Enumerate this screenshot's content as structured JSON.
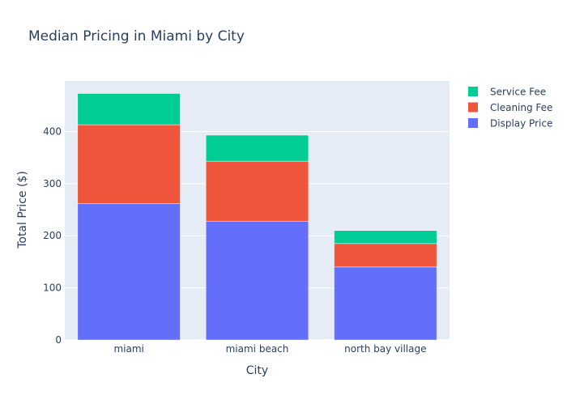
{
  "chart_data": {
    "type": "bar",
    "stacked": true,
    "title": "Median Pricing in Miami by City",
    "xlabel": "City",
    "ylabel": "Total Price ($)",
    "categories": [
      "miami",
      "miami beach",
      "north bay village"
    ],
    "series": [
      {
        "name": "Display Price",
        "color": "#636efa",
        "values": [
          262,
          228,
          140
        ]
      },
      {
        "name": "Cleaning Fee",
        "color": "#ef553b",
        "values": [
          151,
          115,
          45
        ]
      },
      {
        "name": "Service Fee",
        "color": "#00cc96",
        "values": [
          60,
          50,
          25
        ]
      }
    ],
    "ylim": [
      0,
      497
    ],
    "yticks": [
      0,
      100,
      200,
      300,
      400
    ],
    "grid": true,
    "legend_position": "top-right",
    "plot_background": "#e5ecf6"
  }
}
